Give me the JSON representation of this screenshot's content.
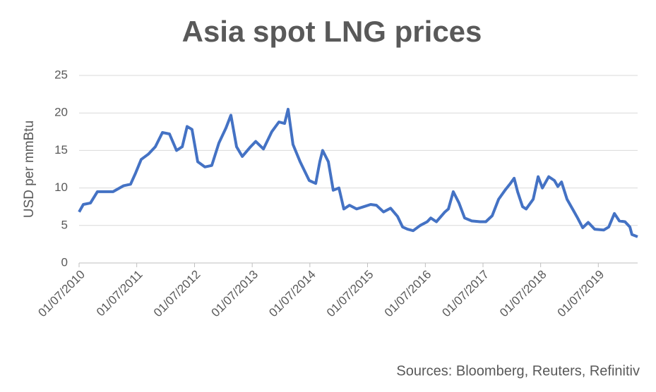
{
  "chart_data": {
    "type": "line",
    "title": "Asia spot LNG prices",
    "y_label": "USD per mmBtu",
    "source": "Sources: Bloomberg, Reuters, Refinitiv",
    "grid": true,
    "ylim": [
      0,
      25
    ],
    "yticks": [
      0,
      5,
      10,
      15,
      20,
      25
    ],
    "xlim": [
      "2010-07-01",
      "2020-03-06"
    ],
    "xticks": [
      {
        "value": "2010-07-01",
        "label": "01/07/2010"
      },
      {
        "value": "2011-07-01",
        "label": "01/07/2011"
      },
      {
        "value": "2012-07-01",
        "label": "01/07/2012"
      },
      {
        "value": "2013-07-01",
        "label": "01/07/2013"
      },
      {
        "value": "2014-07-01",
        "label": "01/07/2014"
      },
      {
        "value": "2015-07-01",
        "label": "01/07/2015"
      },
      {
        "value": "2016-07-01",
        "label": "01/07/2016"
      },
      {
        "value": "2017-07-01",
        "label": "01/07/2017"
      },
      {
        "value": "2018-07-01",
        "label": "01/07/2018"
      },
      {
        "value": "2019-07-01",
        "label": "01/07/2019"
      }
    ],
    "x": [
      "2010-07-01",
      "2010-07-28",
      "2010-09-11",
      "2010-10-25",
      "2011-02-01",
      "2011-04-09",
      "2011-05-23",
      "2011-06-24",
      "2011-07-29",
      "2011-09-12",
      "2011-10-27",
      "2011-12-11",
      "2012-01-24",
      "2012-03-09",
      "2012-04-14",
      "2012-05-15",
      "2012-06-15",
      "2012-07-21",
      "2012-09-04",
      "2012-10-18",
      "2012-12-02",
      "2013-01-16",
      "2013-02-16",
      "2013-03-24",
      "2013-04-29",
      "2013-06-21",
      "2013-07-23",
      "2013-09-10",
      "2013-11-02",
      "2013-12-17",
      "2014-01-22",
      "2014-02-13",
      "2014-03-16",
      "2014-04-30",
      "2014-06-27",
      "2014-08-07",
      "2014-09-02",
      "2014-09-20",
      "2014-10-26",
      "2014-11-26",
      "2015-01-01",
      "2015-02-01",
      "2015-03-09",
      "2015-04-23",
      "2015-06-07",
      "2015-07-21",
      "2015-08-26",
      "2015-10-10",
      "2015-11-24",
      "2016-01-07",
      "2016-02-08",
      "2016-03-10",
      "2016-04-15",
      "2016-05-29",
      "2016-07-13",
      "2016-08-04",
      "2016-09-09",
      "2016-11-02",
      "2016-11-24",
      "2016-12-25",
      "2017-01-30",
      "2017-03-07",
      "2017-04-21",
      "2017-06-13",
      "2017-07-19",
      "2017-08-28",
      "2017-10-08",
      "2017-11-21",
      "2017-12-18",
      "2018-01-14",
      "2018-02-05",
      "2018-03-09",
      "2018-03-31",
      "2018-05-15",
      "2018-06-15",
      "2018-07-12",
      "2018-08-21",
      "2018-09-26",
      "2018-10-18",
      "2018-11-10",
      "2018-12-15",
      "2019-01-24",
      "2019-02-20",
      "2019-03-24",
      "2019-04-28",
      "2019-06-08",
      "2019-08-05",
      "2019-09-05",
      "2019-10-11",
      "2019-11-11",
      "2019-12-17",
      "2020-01-17",
      "2020-01-30",
      "2020-03-06"
    ],
    "series": [
      {
        "name": "Asia spot LNG",
        "color": "#4472c4",
        "values": [
          6.8,
          7.8,
          8.0,
          9.5,
          9.5,
          10.3,
          10.5,
          12.0,
          13.8,
          14.5,
          15.5,
          17.4,
          17.2,
          15.0,
          15.5,
          18.2,
          17.8,
          13.5,
          12.8,
          13.0,
          16.0,
          18.0,
          19.7,
          15.5,
          14.2,
          15.5,
          16.2,
          15.2,
          17.5,
          18.8,
          18.6,
          20.5,
          15.8,
          13.5,
          11.0,
          10.6,
          13.5,
          15.0,
          13.5,
          9.7,
          10.0,
          7.2,
          7.7,
          7.2,
          7.5,
          7.8,
          7.7,
          6.8,
          7.3,
          6.2,
          4.8,
          4.5,
          4.3,
          5.0,
          5.5,
          6.0,
          5.5,
          6.8,
          7.2,
          9.5,
          8.0,
          6.0,
          5.6,
          5.5,
          5.5,
          6.3,
          8.5,
          9.8,
          10.5,
          11.3,
          9.5,
          7.5,
          7.2,
          8.5,
          11.5,
          10.0,
          11.5,
          11.0,
          10.2,
          10.8,
          8.5,
          7.0,
          6.0,
          4.7,
          5.4,
          4.5,
          4.4,
          4.8,
          6.6,
          5.6,
          5.5,
          4.8,
          3.8,
          3.5
        ]
      }
    ]
  }
}
